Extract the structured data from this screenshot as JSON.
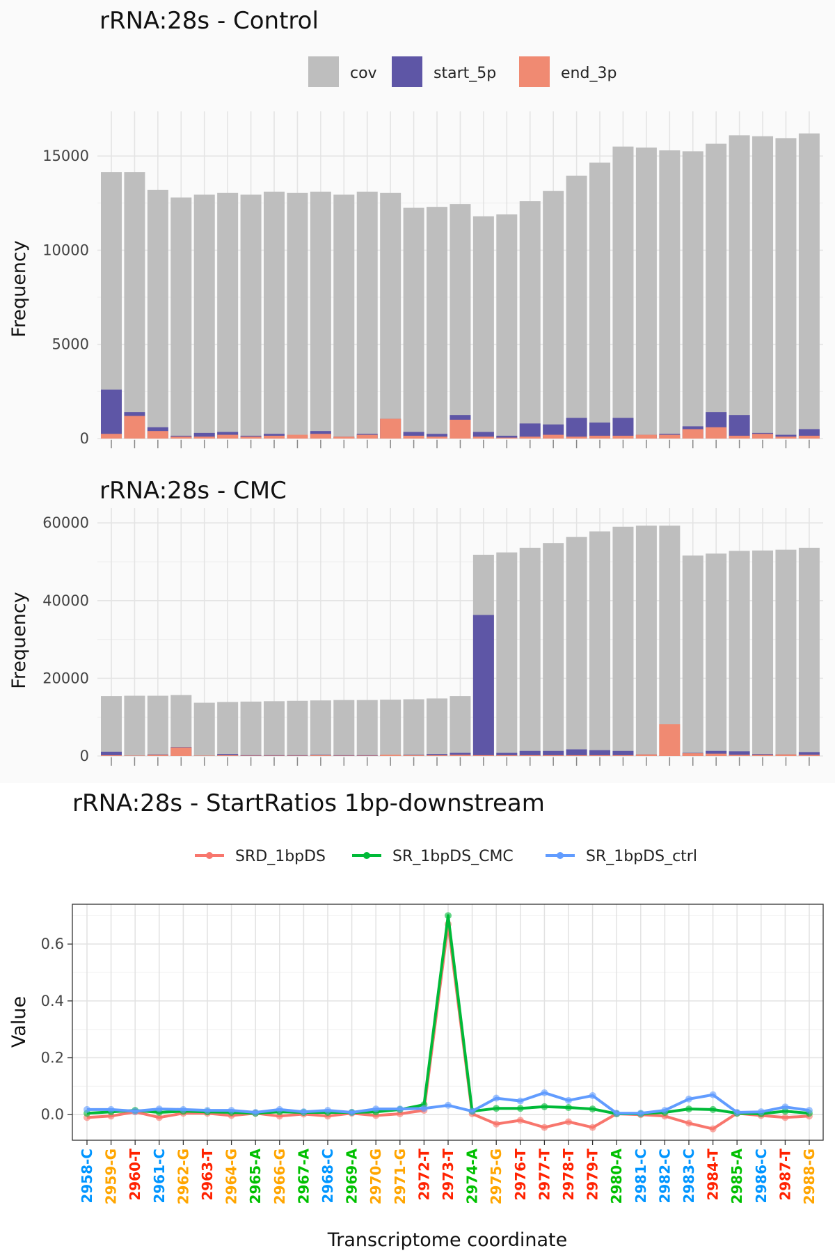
{
  "colors": {
    "cov": "#BEBEBE",
    "start_5p": "#5E56A6",
    "end_3p": "#F08A72",
    "SRD_1bpDS": "#F8766D",
    "SR_1bpDS_CMC": "#00BA38",
    "SR_1bpDS_ctrl": "#619CFF",
    "nt_C": "#0095FF",
    "nt_G": "#FFA500",
    "nt_T": "#FF2200",
    "nt_A": "#00C000"
  },
  "chart_data": [
    {
      "type": "bar",
      "title": "rRNA:28s - Control",
      "ylabel": "Frequency",
      "xlabel": "",
      "ylim": [
        0,
        17000
      ],
      "yticks": [
        0,
        5000,
        10000,
        15000
      ],
      "legend": {
        "position": "top",
        "entries": [
          "cov",
          "start_5p",
          "end_3p"
        ]
      },
      "series": [
        {
          "name": "cov",
          "values": [
            14150,
            14150,
            13200,
            12800,
            12950,
            13050,
            12950,
            13100,
            13050,
            13100,
            12950,
            13100,
            13050,
            12250,
            12300,
            12450,
            11800,
            11900,
            12600,
            13150,
            13950,
            14650,
            15500,
            15450,
            15300,
            15250,
            15650,
            16100,
            16050,
            15950,
            16200
          ]
        },
        {
          "name": "start_5p",
          "values": [
            2600,
            1400,
            600,
            150,
            300,
            350,
            150,
            250,
            150,
            400,
            100,
            250,
            1050,
            350,
            250,
            1250,
            350,
            150,
            800,
            750,
            1100,
            850,
            1100,
            200,
            250,
            650,
            1400,
            1250,
            300,
            200,
            500
          ]
        },
        {
          "name": "end_3p",
          "values": [
            250,
            1200,
            400,
            100,
            100,
            200,
            100,
            150,
            200,
            250,
            100,
            200,
            1050,
            150,
            100,
            1000,
            100,
            50,
            100,
            200,
            100,
            150,
            150,
            200,
            200,
            500,
            600,
            150,
            250,
            100,
            150
          ]
        }
      ]
    },
    {
      "type": "bar",
      "title": "rRNA:28s - CMC",
      "ylabel": "Frequency",
      "xlabel": "",
      "ylim": [
        0,
        62000
      ],
      "yticks": [
        0,
        20000,
        40000,
        60000
      ],
      "series": [
        {
          "name": "cov",
          "values": [
            15400,
            15500,
            15500,
            15700,
            13700,
            13900,
            14000,
            14100,
            14200,
            14300,
            14400,
            14400,
            14500,
            14600,
            14800,
            15400,
            51800,
            52400,
            53600,
            54800,
            56400,
            57800,
            59000,
            59300,
            59300,
            51600,
            52100,
            52800,
            52900,
            53100,
            53600
          ]
        },
        {
          "name": "start_5p",
          "values": [
            1100,
            100,
            400,
            2300,
            100,
            500,
            200,
            200,
            200,
            300,
            200,
            200,
            200,
            300,
            500,
            800,
            36300,
            800,
            1300,
            1300,
            1700,
            1500,
            1300,
            400,
            200,
            800,
            1300,
            1200,
            500,
            400,
            1000
          ]
        },
        {
          "name": "end_3p",
          "values": [
            200,
            100,
            300,
            2200,
            100,
            200,
            100,
            100,
            100,
            200,
            100,
            100,
            300,
            200,
            200,
            300,
            200,
            200,
            200,
            200,
            200,
            200,
            200,
            400,
            8200,
            700,
            600,
            300,
            300,
            400,
            300
          ]
        }
      ]
    },
    {
      "type": "line",
      "title": "rRNA:28s - StartRatios 1bp-downstream",
      "xlabel": "Transcriptome coordinate",
      "ylabel": "Value",
      "ylim": [
        -0.09,
        0.74
      ],
      "yticks": [
        0.0,
        0.2,
        0.4,
        0.6
      ],
      "ytick_labels": [
        "0.0",
        "0.2",
        "0.4",
        "0.6"
      ],
      "legend": {
        "position": "top",
        "entries": [
          "SRD_1bpDS",
          "SR_1bpDS_CMC",
          "SR_1bpDS_ctrl"
        ]
      },
      "categories": [
        "2958-C",
        "2959-G",
        "2960-T",
        "2961-C",
        "2962-G",
        "2963-T",
        "2964-G",
        "2965-A",
        "2966-G",
        "2967-A",
        "2968-C",
        "2969-A",
        "2970-G",
        "2971-G",
        "2972-T",
        "2973-T",
        "2974-A",
        "2975-G",
        "2976-T",
        "2977-T",
        "2978-T",
        "2979-T",
        "2980-A",
        "2981-C",
        "2982-C",
        "2983-C",
        "2984-T",
        "2985-A",
        "2986-C",
        "2987-T",
        "2988-G"
      ],
      "series": [
        {
          "name": "SRD_1bpDS",
          "values": [
            -0.01,
            -0.005,
            0.01,
            -0.01,
            0.005,
            0.005,
            -0.003,
            0.005,
            -0.005,
            0.002,
            -0.005,
            0.005,
            -0.003,
            0.003,
            0.015,
            0.67,
            0.003,
            -0.033,
            -0.02,
            -0.045,
            -0.025,
            -0.045,
            0.003,
            0.0,
            -0.005,
            -0.03,
            -0.05,
            0.005,
            -0.003,
            -0.01,
            -0.005
          ]
        },
        {
          "name": "SR_1bpDS_CMC",
          "values": [
            0.005,
            0.01,
            0.015,
            0.008,
            0.012,
            0.01,
            0.008,
            0.005,
            0.01,
            0.008,
            0.008,
            0.008,
            0.01,
            0.018,
            0.035,
            0.7,
            0.012,
            0.022,
            0.022,
            0.028,
            0.025,
            0.02,
            0.003,
            0.003,
            0.008,
            0.02,
            0.018,
            0.005,
            0.003,
            0.012,
            0.005
          ]
        },
        {
          "name": "SR_1bpDS_ctrl",
          "values": [
            0.018,
            0.018,
            0.012,
            0.02,
            0.018,
            0.015,
            0.015,
            0.008,
            0.018,
            0.01,
            0.015,
            0.008,
            0.02,
            0.02,
            0.022,
            0.033,
            0.012,
            0.058,
            0.048,
            0.077,
            0.05,
            0.067,
            0.005,
            0.005,
            0.015,
            0.055,
            0.07,
            0.008,
            0.01,
            0.027,
            0.015
          ]
        }
      ]
    }
  ]
}
